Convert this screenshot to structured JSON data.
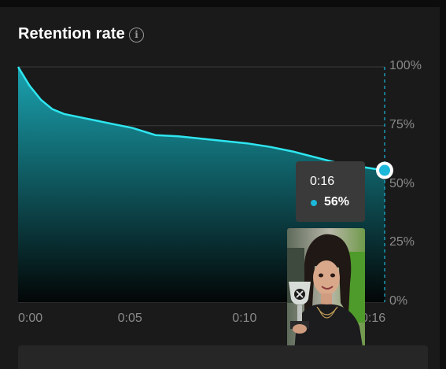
{
  "title": "Retention rate",
  "info_icon": "info-icon",
  "colors": {
    "line": "#2ee6f0",
    "fill_top": "#1aa3b0",
    "point": "#1cb7d9",
    "background": "#1a1a1a"
  },
  "tooltip": {
    "time": "0:16",
    "value": "56%"
  },
  "thumbnail": {
    "description_icon": "video-thumbnail-icon"
  },
  "chart_data": {
    "type": "area",
    "x": [
      0,
      0.5,
      1,
      1.5,
      2,
      3,
      4,
      5,
      6,
      7,
      8,
      9,
      10,
      11,
      12,
      13,
      14,
      15,
      16
    ],
    "y": [
      100,
      92,
      86,
      82,
      80,
      78,
      76,
      74,
      71,
      70.5,
      69.5,
      68.5,
      67.5,
      66,
      64,
      61.5,
      59,
      57.5,
      56
    ],
    "xlim": [
      0,
      16
    ],
    "ylim": [
      0,
      100
    ],
    "x_ticks": [
      "0:00",
      "0:05",
      "0:10",
      "0:16"
    ],
    "x_tick_values": [
      0,
      5,
      10,
      16
    ],
    "y_ticks": [
      "100%",
      "75%",
      "50%",
      "25%",
      "0%"
    ],
    "y_tick_values": [
      100,
      75,
      50,
      25,
      0
    ],
    "highlight": {
      "x": 16,
      "y": 56
    },
    "grid": true
  }
}
